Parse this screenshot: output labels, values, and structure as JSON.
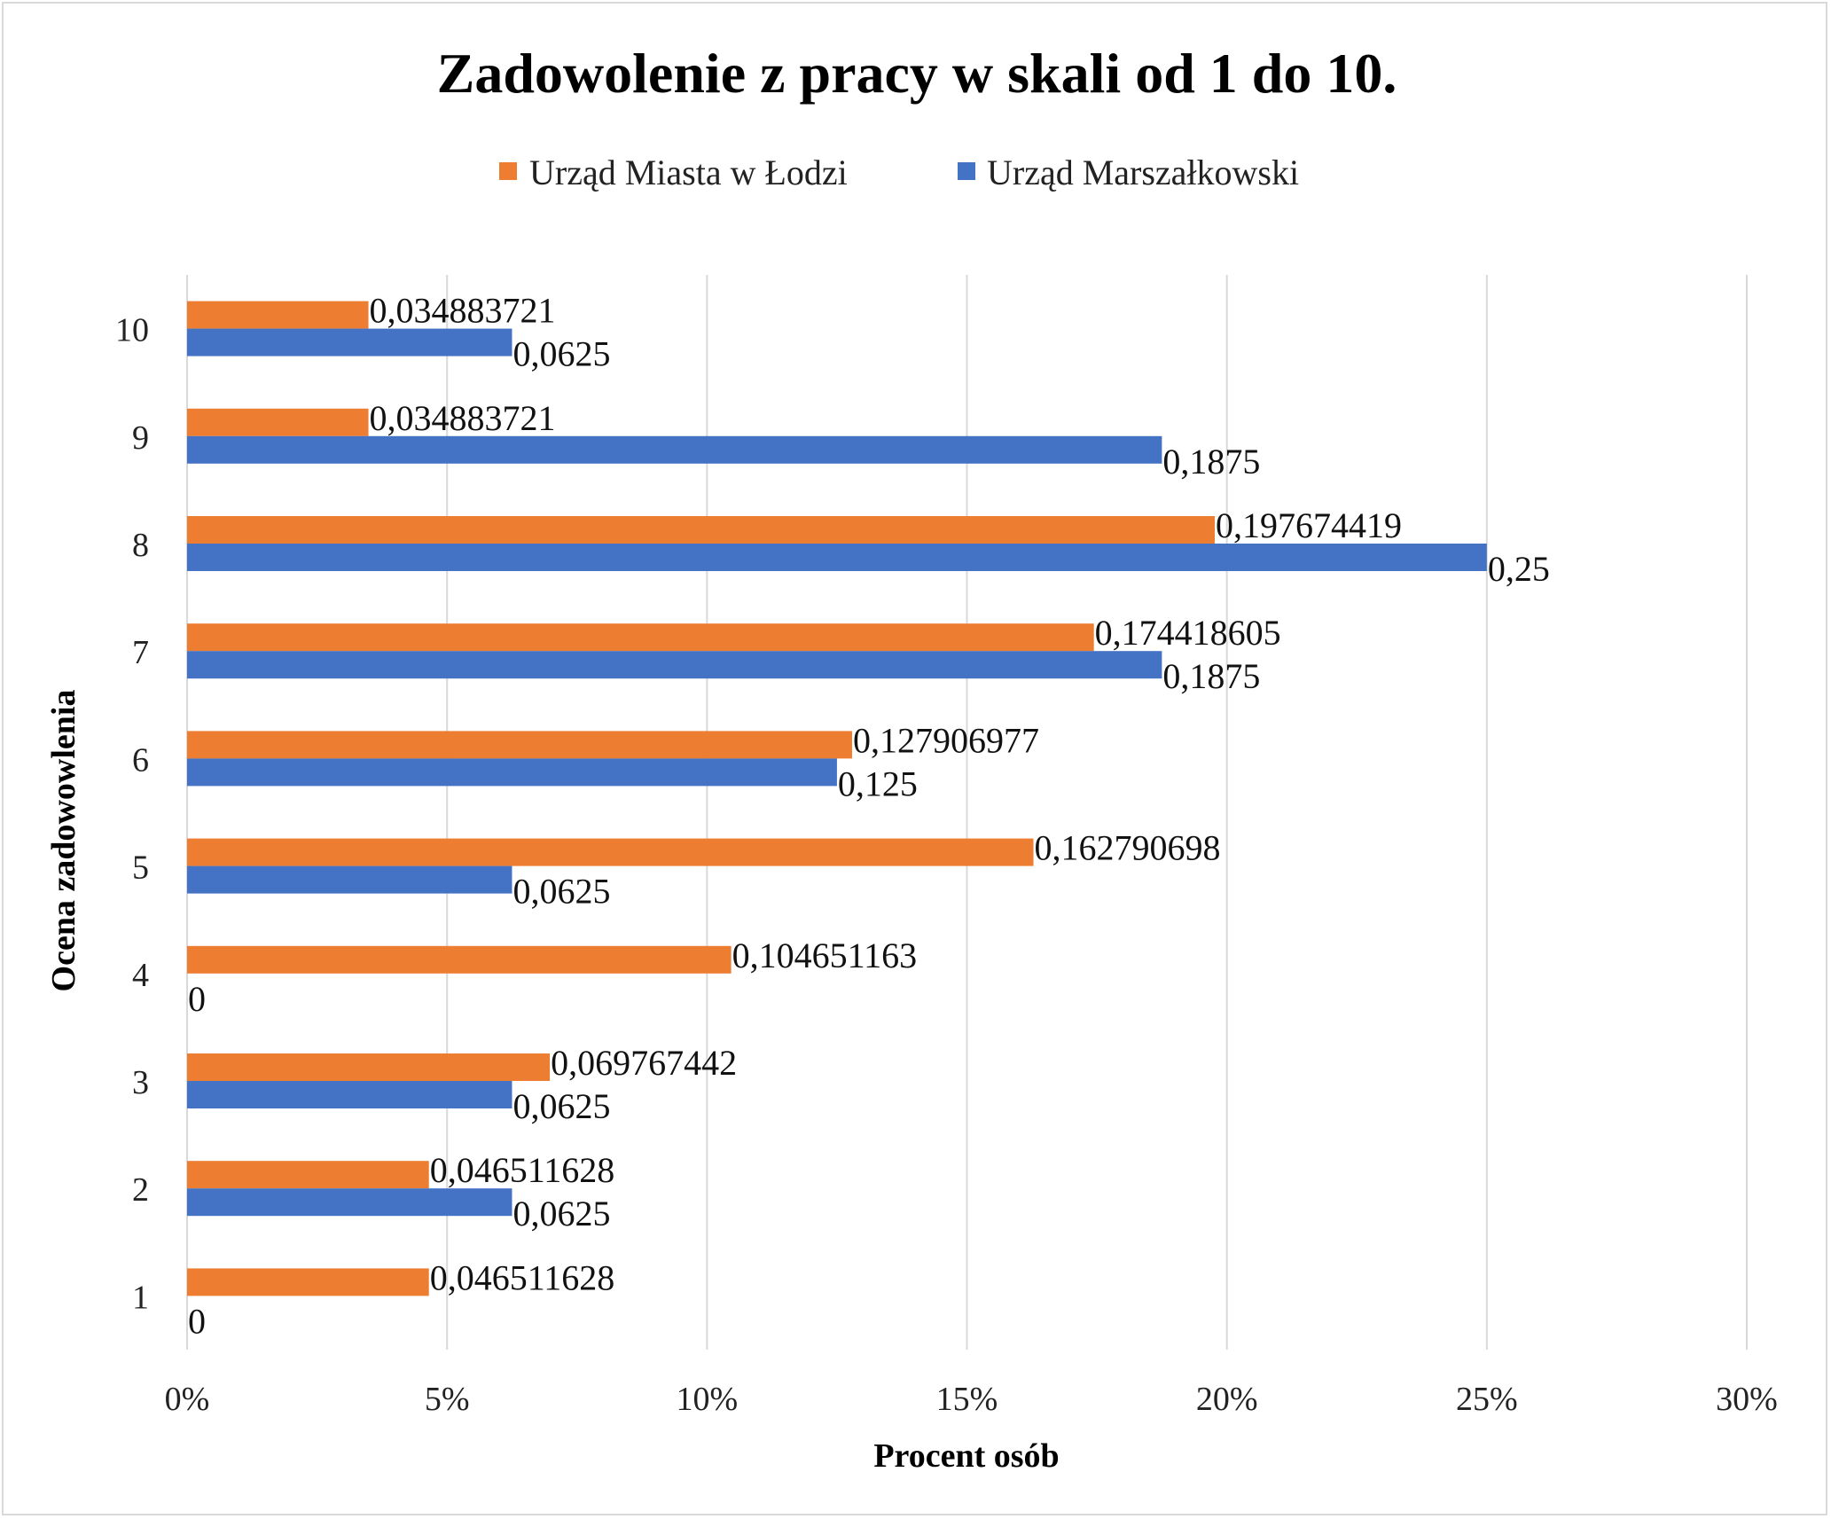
{
  "chart_data": {
    "type": "bar",
    "orientation": "horizontal",
    "title": "Zadowolenie z pracy w skali od 1 do 10.",
    "xlabel": "Procent osób",
    "ylabel": "Ocena zadowowlenia",
    "xlim": [
      0,
      0.3
    ],
    "xticks": [
      {
        "value": 0,
        "label": "0%"
      },
      {
        "value": 0.05,
        "label": "5%"
      },
      {
        "value": 0.1,
        "label": "10%"
      },
      {
        "value": 0.15,
        "label": "15%"
      },
      {
        "value": 0.2,
        "label": "20%"
      },
      {
        "value": 0.25,
        "label": "25%"
      },
      {
        "value": 0.3,
        "label": "30%"
      }
    ],
    "categories": [
      "1",
      "2",
      "3",
      "4",
      "5",
      "6",
      "7",
      "8",
      "9",
      "10"
    ],
    "grid": "vertical",
    "legend_position": "top",
    "series": [
      {
        "name": "Urząd Miasta w Łodzi",
        "color": "#ED7D31",
        "values": [
          0.046511628,
          0.046511628,
          0.069767442,
          0.104651163,
          0.162790698,
          0.127906977,
          0.174418605,
          0.197674419,
          0.034883721,
          0.034883721
        ],
        "labels": [
          "0,046511628",
          "0,046511628",
          "0,069767442",
          "0,104651163",
          "0,162790698",
          "0,127906977",
          "0,174418605",
          "0,197674419",
          "0,034883721",
          "0,034883721"
        ]
      },
      {
        "name": "Urząd Marszałkowski",
        "color": "#4472C4",
        "values": [
          0,
          0.0625,
          0.0625,
          0,
          0.0625,
          0.125,
          0.1875,
          0.25,
          0.1875,
          0.0625
        ],
        "labels": [
          "0",
          "0,0625",
          "0,0625",
          "0",
          "0,0625",
          "0,125",
          "0,1875",
          "0,25",
          "0,1875",
          "0,0625"
        ]
      }
    ]
  }
}
